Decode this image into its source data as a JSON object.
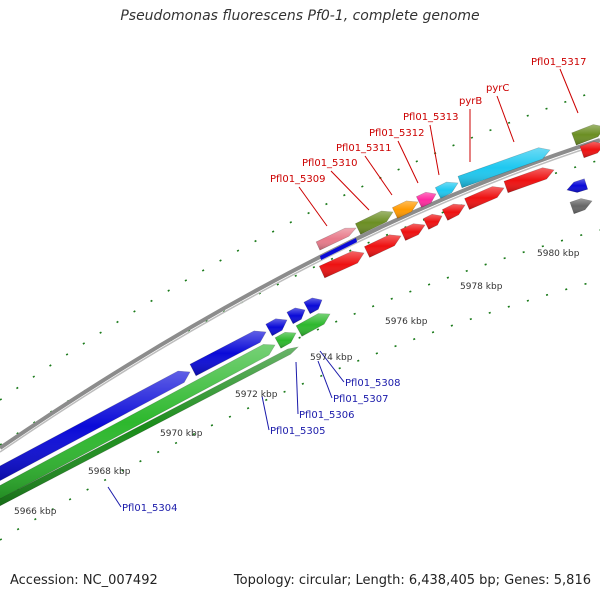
{
  "title": "Pseudomonas fluorescens Pf0-1, complete genome",
  "footer": {
    "accession": "Accession: NC_007492",
    "topology": "Topology: circular; Length: 6,438,405 bp; Genes: 5,816"
  },
  "colors": {
    "backbone": "#8c8c8c",
    "tick": "#1a7a1a",
    "label_top": "#cc0000",
    "label_bottom": "#1a1aaa",
    "kbp_text": "#333333"
  },
  "kbp_labels": [
    {
      "text": "5966 kbp"
    },
    {
      "text": "5968 kbp"
    },
    {
      "text": "5970 kbp"
    },
    {
      "text": "5972 kbp"
    },
    {
      "text": "5974 kbp"
    },
    {
      "text": "5976 kbp"
    },
    {
      "text": "5978 kbp"
    },
    {
      "text": "5980 kbp"
    }
  ],
  "upper_labels": [
    {
      "text": "Pfl01_5309",
      "color": "#cc0000"
    },
    {
      "text": "Pfl01_5310",
      "color": "#cc0000"
    },
    {
      "text": "Pfl01_5311",
      "color": "#cc0000"
    },
    {
      "text": "Pfl01_5312",
      "color": "#cc0000"
    },
    {
      "text": "Pfl01_5313",
      "color": "#cc0000"
    },
    {
      "text": "pyrB",
      "color": "#cc0000"
    },
    {
      "text": "pyrC",
      "color": "#cc0000"
    },
    {
      "text": "Pfl01_5317",
      "color": "#cc0000"
    }
  ],
  "lower_labels": [
    {
      "text": "Pfl01_5304",
      "color": "#1a1aaa"
    },
    {
      "text": "Pfl01_5305",
      "color": "#1a1aaa"
    },
    {
      "text": "Pfl01_5306",
      "color": "#1a1aaa"
    },
    {
      "text": "Pfl01_5307",
      "color": "#1a1aaa"
    },
    {
      "text": "Pfl01_5308",
      "color": "#1a1aaa"
    }
  ],
  "genes": [
    {
      "name": "blue-long-1",
      "track": "blue",
      "color": "#0a0ad8",
      "dir": 1
    },
    {
      "name": "blue-long-2",
      "track": "blue",
      "color": "#0a0ad8",
      "dir": 1
    },
    {
      "name": "blue-short-1",
      "track": "blue",
      "color": "#0a0ad8",
      "dir": 1
    },
    {
      "name": "blue-short-2",
      "track": "blue",
      "color": "#0a0ad8",
      "dir": 1
    },
    {
      "name": "blue-short-3",
      "track": "blue",
      "color": "#0a0ad8",
      "dir": 1
    },
    {
      "name": "green-long-1",
      "track": "green",
      "color": "#2db82d",
      "dir": 1
    },
    {
      "name": "green-short-1",
      "track": "green",
      "color": "#2db82d",
      "dir": 1
    },
    {
      "name": "green-short-2",
      "track": "green",
      "color": "#2db82d",
      "dir": 1
    },
    {
      "name": "darkgreen-long",
      "track": "dgreen",
      "color": "#1a8c1a",
      "dir": 1
    },
    {
      "name": "pink-1",
      "track": "t1",
      "color": "#e87a8a",
      "dir": 1
    },
    {
      "name": "olive-1",
      "track": "t1",
      "color": "#6b8e23",
      "dir": 1
    },
    {
      "name": "orange-1",
      "track": "t1",
      "color": "#ff9900",
      "dir": 1
    },
    {
      "name": "magenta-1",
      "track": "t1",
      "color": "#ff2aa0",
      "dir": 1
    },
    {
      "name": "cyan-1",
      "track": "t1",
      "color": "#1ec8f0",
      "dir": 1
    },
    {
      "name": "cyan-2",
      "track": "t1",
      "color": "#1ec8f0",
      "dir": 1
    },
    {
      "name": "olive-2",
      "track": "t1",
      "color": "#6b8e23",
      "dir": 1
    },
    {
      "name": "red-1",
      "track": "t2",
      "color": "#ee1111",
      "dir": 1
    },
    {
      "name": "red-2",
      "track": "t2",
      "color": "#ee1111",
      "dir": 1
    },
    {
      "name": "red-3",
      "track": "t2",
      "color": "#ee1111",
      "dir": 1
    },
    {
      "name": "red-4",
      "track": "t2",
      "color": "#ee1111",
      "dir": 1
    },
    {
      "name": "red-5",
      "track": "t2",
      "color": "#ee1111",
      "dir": 1
    },
    {
      "name": "red-6",
      "track": "t2",
      "color": "#ee1111",
      "dir": 1
    },
    {
      "name": "red-7",
      "track": "t2",
      "color": "#ee1111",
      "dir": 1
    },
    {
      "name": "red-8",
      "track": "t2",
      "color": "#ee1111",
      "dir": 1
    },
    {
      "name": "blue-small-right",
      "track": "t3",
      "color": "#0a0ad8",
      "dir": -1
    },
    {
      "name": "gray-small-right",
      "track": "t4",
      "color": "#666666",
      "dir": 1
    }
  ]
}
